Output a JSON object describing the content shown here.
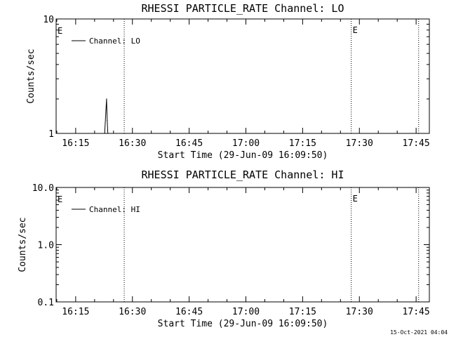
{
  "chart_data": [
    {
      "type": "line",
      "title": "RHESSI PARTICLE_RATE Channel: LO",
      "xlabel": "Start Time (29-Jun-09 16:09:50)",
      "ylabel": "Counts/sec",
      "yscale": "log",
      "ylim": [
        1,
        10
      ],
      "xlim": [
        "16:09:50",
        "17:48:30"
      ],
      "x_ticks": [
        "16:15",
        "16:30",
        "16:45",
        "17:00",
        "17:15",
        "17:30",
        "17:45"
      ],
      "y_ticks": [
        "1",
        "10"
      ],
      "legend": {
        "position": "top-left",
        "entries": [
          "Channel: LO"
        ]
      },
      "vertical_markers": [
        {
          "time": "16:27:50",
          "label": ""
        },
        {
          "time": "17:27:50",
          "label": "E"
        },
        {
          "time": "17:45:40",
          "label": ""
        }
      ],
      "edge_label": "E",
      "series": [
        {
          "name": "Channel: LO",
          "color": "#000000",
          "points": [
            [
              "16:22:40",
              1
            ],
            [
              "16:23:00",
              1.6
            ],
            [
              "16:23:10",
              2.0
            ],
            [
              "16:23:20",
              1.3
            ],
            [
              "16:23:30",
              1
            ]
          ]
        }
      ]
    },
    {
      "type": "line",
      "title": "RHESSI PARTICLE_RATE Channel: HI",
      "xlabel": "Start Time (29-Jun-09 16:09:50)",
      "ylabel": "Counts/sec",
      "yscale": "log",
      "ylim": [
        0.1,
        10
      ],
      "xlim": [
        "16:09:50",
        "17:48:30"
      ],
      "x_ticks": [
        "16:15",
        "16:30",
        "16:45",
        "17:00",
        "17:15",
        "17:30",
        "17:45"
      ],
      "y_ticks": [
        "0.1",
        "1.0",
        "10.0"
      ],
      "legend": {
        "position": "top-left",
        "entries": [
          "Channel: HI"
        ]
      },
      "vertical_markers": [
        {
          "time": "16:27:50",
          "label": ""
        },
        {
          "time": "17:27:50",
          "label": "E"
        },
        {
          "time": "17:45:40",
          "label": ""
        }
      ],
      "edge_label": "E",
      "series": [
        {
          "name": "Channel: HI",
          "color": "#000000",
          "points": []
        }
      ]
    }
  ],
  "timestamp": "15-Oct-2021 04:04"
}
